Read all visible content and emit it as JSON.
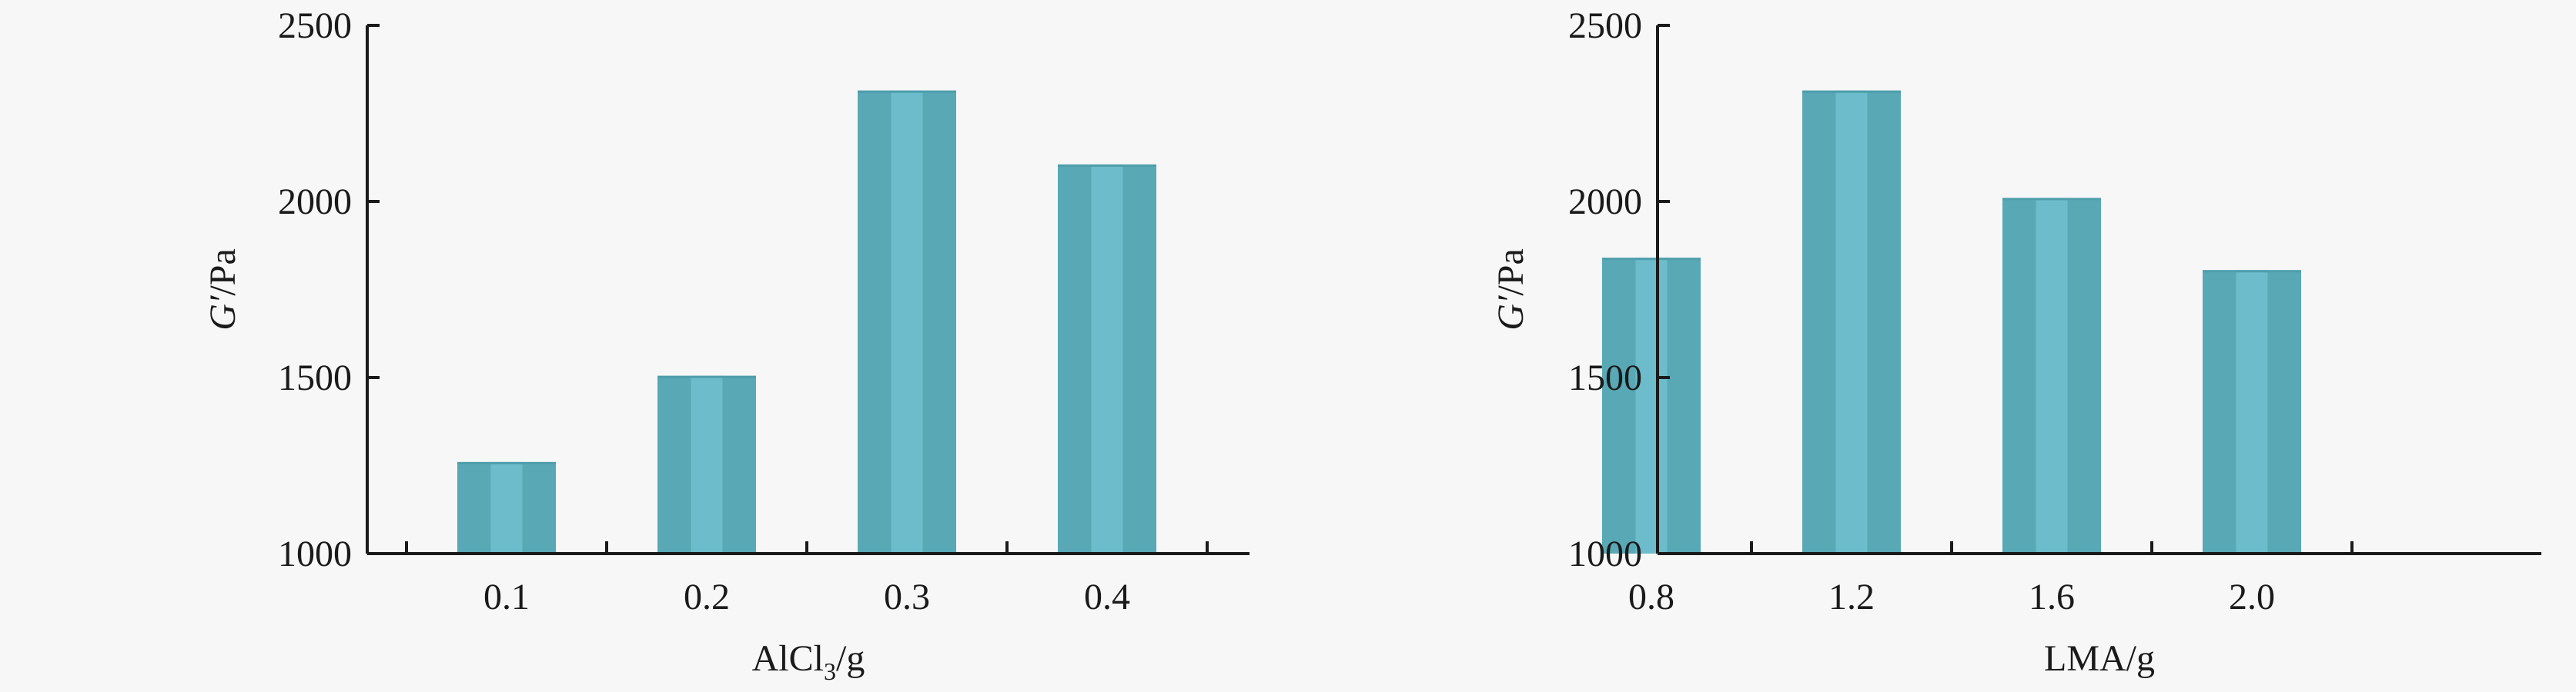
{
  "chart_data": [
    {
      "type": "bar",
      "categories": [
        "0.1",
        "0.2",
        "0.3",
        "0.4"
      ],
      "values": [
        1260,
        1505,
        2315,
        2105
      ],
      "xlabel": "AlCl",
      "xlabel_sub": "3",
      "xlabel_suffix": "/g",
      "ylabel_italic": "G′",
      "ylabel_suffix": "/Pa",
      "ylim": [
        1000,
        2500
      ],
      "yticks": [
        "1000",
        "1500",
        "2000",
        "2500"
      ],
      "colors": {
        "bar": "#58a8b6",
        "bar_highlight": "#6cbccb"
      }
    },
    {
      "type": "bar",
      "categories": [
        "0.8",
        "1.2",
        "1.6",
        "2.0"
      ],
      "values": [
        1840,
        2315,
        2010,
        1805
      ],
      "xlabel": "LMA/g",
      "xlabel_sub": "",
      "xlabel_suffix": "",
      "ylabel_italic": "G′",
      "ylabel_suffix": "/Pa",
      "ylim": [
        1000,
        2500
      ],
      "yticks": [
        "1000",
        "1500",
        "2000",
        "2500"
      ],
      "colors": {
        "bar": "#58a8b6",
        "bar_highlight": "#6cbccb"
      }
    }
  ]
}
